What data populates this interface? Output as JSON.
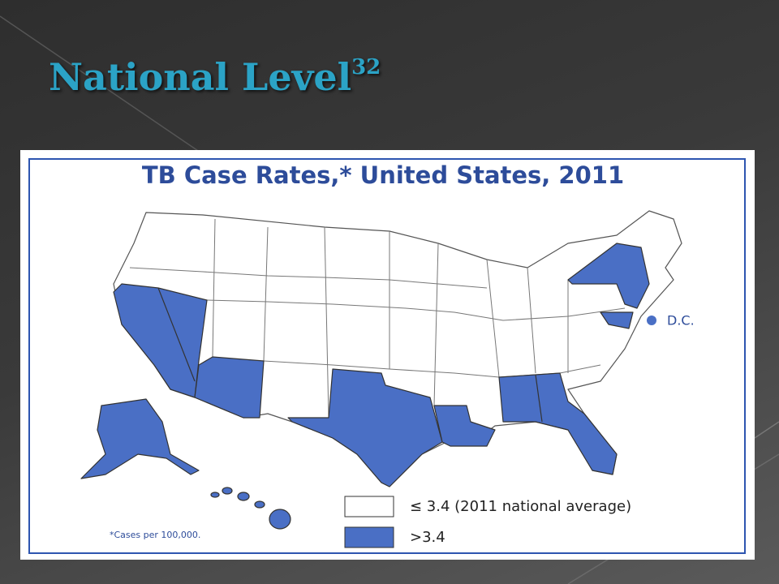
{
  "header": {
    "title": "National Level",
    "superscript": "32"
  },
  "map": {
    "title": "TB Case Rates,* United States, 2011",
    "dc_label": "D.C.",
    "legend": [
      "≤ 3.4 (2011 national average)",
      ">3.4"
    ],
    "footnote": "*Cases per 100,000."
  }
}
